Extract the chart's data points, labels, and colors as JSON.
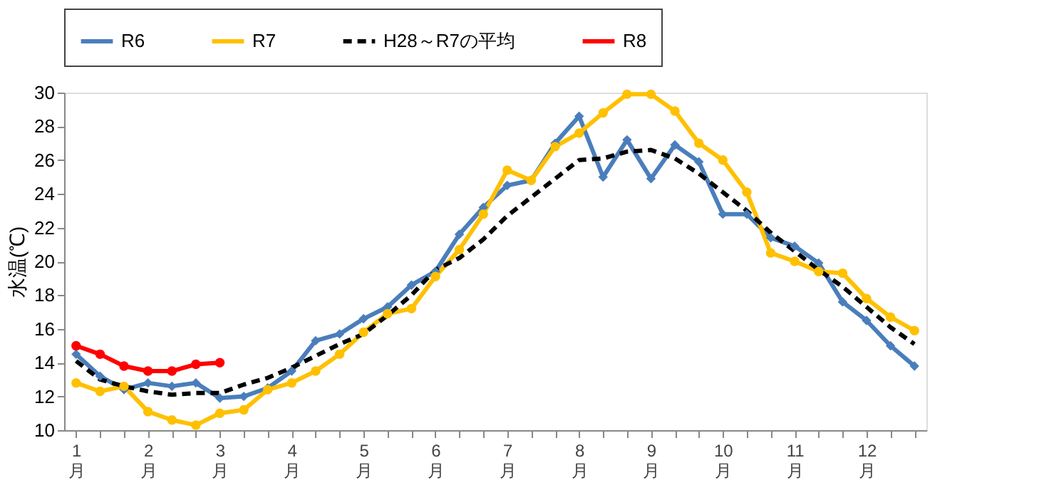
{
  "chart_data": {
    "type": "line",
    "ylabel": "水温(℃)",
    "categories": [
      "1\n月",
      null,
      null,
      "2\n月",
      null,
      null,
      "3\n月",
      null,
      null,
      "4\n月",
      null,
      null,
      "5\n月",
      null,
      null,
      "6\n月",
      null,
      null,
      "7\n月",
      null,
      null,
      "8\n月",
      null,
      null,
      "9\n月",
      null,
      null,
      "10\n月",
      null,
      null,
      "11\n月",
      null,
      null,
      "12\n月",
      null,
      null
    ],
    "ylim": [
      10,
      30
    ],
    "yticks": [
      10,
      12,
      14,
      16,
      18,
      20,
      22,
      24,
      26,
      28,
      30
    ],
    "grid": false,
    "legend": "top",
    "series": [
      {
        "name": "R6",
        "color": "#4a7ebb",
        "marker": "diamond",
        "line_style": "solid",
        "values": [
          14.5,
          13.2,
          12.4,
          12.8,
          12.6,
          12.8,
          11.9,
          12.0,
          12.5,
          13.5,
          15.3,
          15.7,
          16.6,
          17.3,
          18.6,
          19.4,
          21.6,
          23.2,
          24.5,
          24.8,
          27.0,
          28.6,
          25.0,
          27.2,
          24.9,
          26.9,
          25.9,
          22.8,
          22.8,
          21.4,
          20.9,
          19.9,
          17.6,
          16.5,
          15.0,
          13.8
        ]
      },
      {
        "name": "R7",
        "color": "#ffc000",
        "marker": "circle",
        "line_style": "solid",
        "values": [
          12.8,
          12.3,
          12.6,
          11.1,
          10.6,
          10.3,
          11.0,
          11.2,
          12.4,
          12.8,
          13.5,
          14.5,
          15.8,
          16.9,
          17.2,
          19.1,
          20.7,
          22.8,
          25.4,
          24.8,
          26.8,
          27.6,
          28.8,
          29.9,
          29.9,
          28.9,
          27.0,
          26.0,
          24.1,
          20.5,
          20.0,
          19.4,
          19.3,
          17.8,
          16.7,
          15.9
        ]
      },
      {
        "name": "H28～R7の平均",
        "color": "#000000",
        "marker": "none",
        "line_style": "dashed",
        "values": [
          14.1,
          13.0,
          12.6,
          12.3,
          12.1,
          12.2,
          12.2,
          12.7,
          13.1,
          13.7,
          14.4,
          15.1,
          15.7,
          16.8,
          18.0,
          19.5,
          20.2,
          21.3,
          22.7,
          23.8,
          24.9,
          26.0,
          26.1,
          26.5,
          26.6,
          26.1,
          25.2,
          24.1,
          23.0,
          21.7,
          20.6,
          19.5,
          18.5,
          17.3,
          16.1,
          15.1
        ]
      },
      {
        "name": "R8",
        "color": "#ff0000",
        "marker": "circle",
        "line_style": "solid",
        "values": [
          15.0,
          14.5,
          13.8,
          13.5,
          13.5,
          13.9,
          14.0,
          null,
          null,
          null,
          null,
          null,
          null,
          null,
          null,
          null,
          null,
          null,
          null,
          null,
          null,
          null,
          null,
          null,
          null,
          null,
          null,
          null,
          null,
          null,
          null,
          null,
          null,
          null,
          null,
          null
        ]
      }
    ]
  }
}
